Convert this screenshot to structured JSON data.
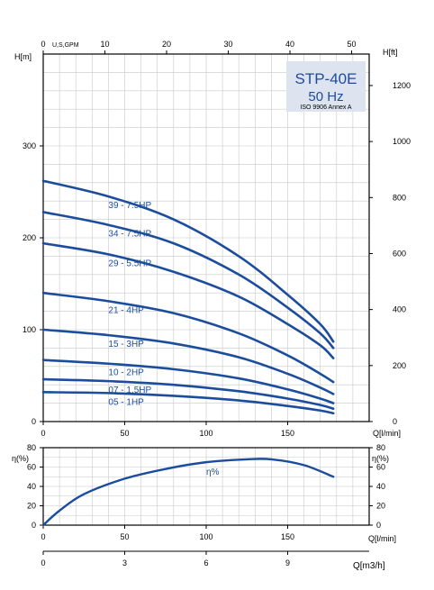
{
  "chart_data": [
    {
      "type": "line",
      "title": "STP-40E",
      "subtitle": "50 Hz",
      "note": "ISO 9906 Annex A",
      "xlabel": "Q[l/min]",
      "ylabel": "H[m]",
      "ylabel_right": "H[ft]",
      "xlabel_top": "U,S,GPM",
      "xlim": [
        0,
        200
      ],
      "ylim": [
        0,
        400
      ],
      "x_ticks": [
        0,
        50,
        100,
        150
      ],
      "y_ticks": [
        0,
        100,
        200,
        300
      ],
      "top_ticks": [
        0,
        10,
        20,
        30,
        40,
        50
      ],
      "right_ticks": [
        0,
        200,
        400,
        600,
        800,
        1000,
        1200
      ],
      "grid": true,
      "series": [
        {
          "name": "39 - 7.5HP",
          "x": [
            0,
            40,
            80,
            120,
            150,
            170,
            178
          ],
          "y": [
            262,
            245,
            220,
            180,
            138,
            106,
            87
          ]
        },
        {
          "name": "34 - 7.5HP",
          "x": [
            0,
            40,
            80,
            120,
            150,
            170,
            178
          ],
          "y": [
            228,
            214,
            194,
            160,
            124,
            96,
            80
          ]
        },
        {
          "name": "29 - 5.5HP",
          "x": [
            0,
            40,
            80,
            120,
            150,
            170,
            178
          ],
          "y": [
            194,
            182,
            163,
            136,
            106,
            83,
            69
          ]
        },
        {
          "name": "21 - 4HP",
          "x": [
            0,
            40,
            80,
            120,
            150,
            170,
            178
          ],
          "y": [
            140,
            131,
            118,
            96,
            72,
            52,
            43
          ]
        },
        {
          "name": "15 - 3HP",
          "x": [
            0,
            40,
            80,
            120,
            150,
            170,
            178
          ],
          "y": [
            100,
            94,
            85,
            70,
            52,
            37,
            30
          ]
        },
        {
          "name": "10 - 2HP",
          "x": [
            0,
            40,
            80,
            120,
            150,
            170,
            178
          ],
          "y": [
            67,
            63,
            57,
            47,
            35,
            25,
            20
          ]
        },
        {
          "name": "07 - 1.5HP",
          "x": [
            0,
            40,
            80,
            120,
            150,
            170,
            178
          ],
          "y": [
            46,
            44,
            40,
            33,
            25,
            18,
            14
          ]
        },
        {
          "name": "05 - 1HP",
          "x": [
            0,
            40,
            80,
            120,
            150,
            170,
            178
          ],
          "y": [
            32,
            31,
            28,
            23,
            17,
            12,
            9
          ]
        }
      ],
      "colors": {
        "line": "#1c4d9c",
        "label": "#1c4d9c",
        "grid": "#c8c8c8",
        "title_box": "#dde4ef",
        "axis": "#000000"
      }
    },
    {
      "type": "line",
      "ylabel": "η(%)",
      "ylabel_right": "η(%)",
      "xlabel": "Q[l/min]",
      "xlabel_bottom": "Q[m3/h]",
      "xlim": [
        0,
        200
      ],
      "ylim": [
        0,
        80
      ],
      "x_ticks": [
        0,
        50,
        100,
        150
      ],
      "y_ticks": [
        0,
        20,
        40,
        60,
        80
      ],
      "bottom_ticks": [
        0,
        3,
        6,
        9
      ],
      "grid": true,
      "series": [
        {
          "name": "η%",
          "x": [
            0,
            10,
            25,
            50,
            75,
            100,
            125,
            140,
            160,
            178
          ],
          "y": [
            0,
            15,
            32,
            48,
            58,
            65,
            68,
            68,
            62,
            50
          ]
        }
      ]
    }
  ]
}
